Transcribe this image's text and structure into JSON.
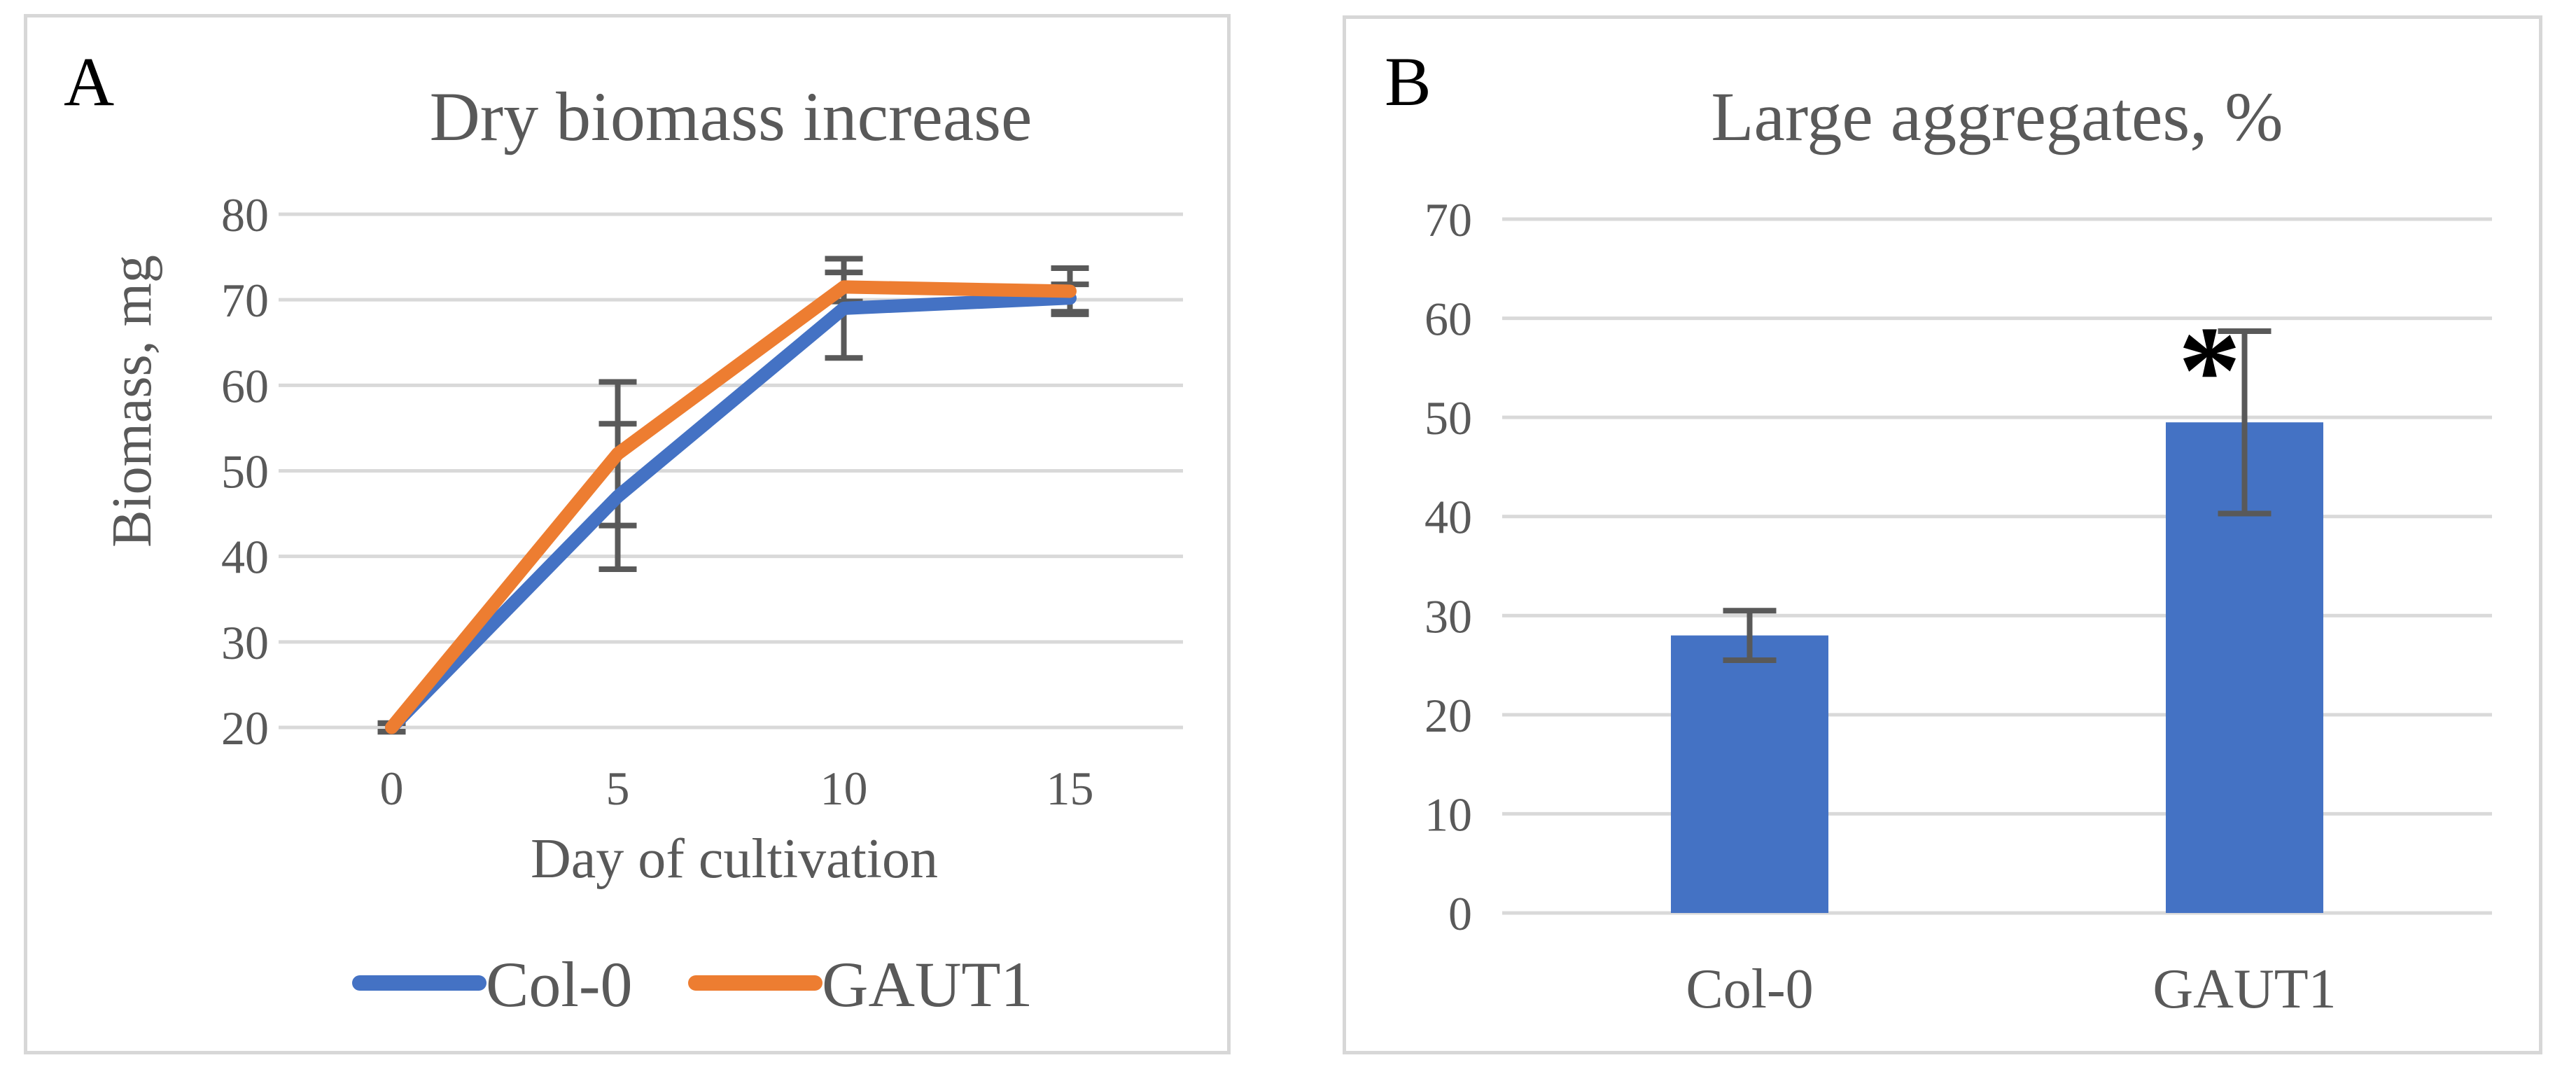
{
  "figure": {
    "description": "Two-panel scientific figure comparing Col-0 and GAUT1 cultures",
    "background": "#ffffff"
  },
  "colors": {
    "accent_blue": "#4472C4",
    "accent_orange": "#ED7D31",
    "axis_text": "#595959",
    "gridline": "#D9D9D9",
    "error_bar": "#595959",
    "panel_border": "#D7D7D7",
    "annotation": "#000000"
  },
  "chart_data": [
    {
      "panel_label": "A",
      "type": "line",
      "title": "Dry biomass increase",
      "xlabel": "Day of cultivation",
      "ylabel": "Biomass, mg",
      "x": [
        0,
        5,
        10,
        15
      ],
      "xtick_labels": [
        "0",
        "5",
        "10",
        "15"
      ],
      "ylim": [
        20,
        80
      ],
      "ytick_step": 10,
      "ytick_labels": [
        "80",
        "70",
        "60",
        "50",
        "40",
        "30",
        "20"
      ],
      "grid": true,
      "legend_position": "bottom",
      "series": [
        {
          "name": "Col-0",
          "color": "#4472C4",
          "values": [
            20,
            47,
            69,
            70.2
          ],
          "errors": [
            0.5,
            8.5,
            5.8,
            1.6
          ]
        },
        {
          "name": "GAUT1",
          "color": "#ED7D31",
          "values": [
            20,
            52,
            71.5,
            71
          ],
          "errors": [
            0.5,
            8.4,
            1.7,
            2.7
          ]
        }
      ]
    },
    {
      "panel_label": "B",
      "type": "bar",
      "title": "Large aggregates, %",
      "categories": [
        "Col-0",
        "GAUT1"
      ],
      "values": [
        28,
        49.5
      ],
      "errors": [
        2.5,
        9.2
      ],
      "bar_color": "#4472C4",
      "ylim": [
        0,
        70
      ],
      "ytick_step": 10,
      "ytick_labels": [
        "70",
        "60",
        "50",
        "40",
        "30",
        "20",
        "10",
        "0"
      ],
      "grid": true,
      "annotations": [
        {
          "text": "*",
          "category": "GAUT1",
          "y": 56.5,
          "color": "#000000"
        }
      ]
    }
  ]
}
